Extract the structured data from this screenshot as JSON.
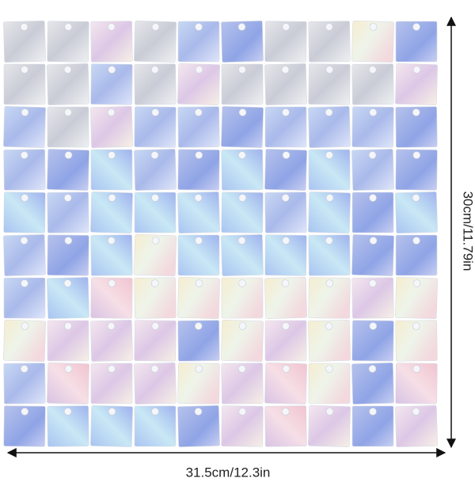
{
  "dimensions": {
    "height": "30cm/11.79in",
    "width": "31.5cm/12.3in"
  }
}
